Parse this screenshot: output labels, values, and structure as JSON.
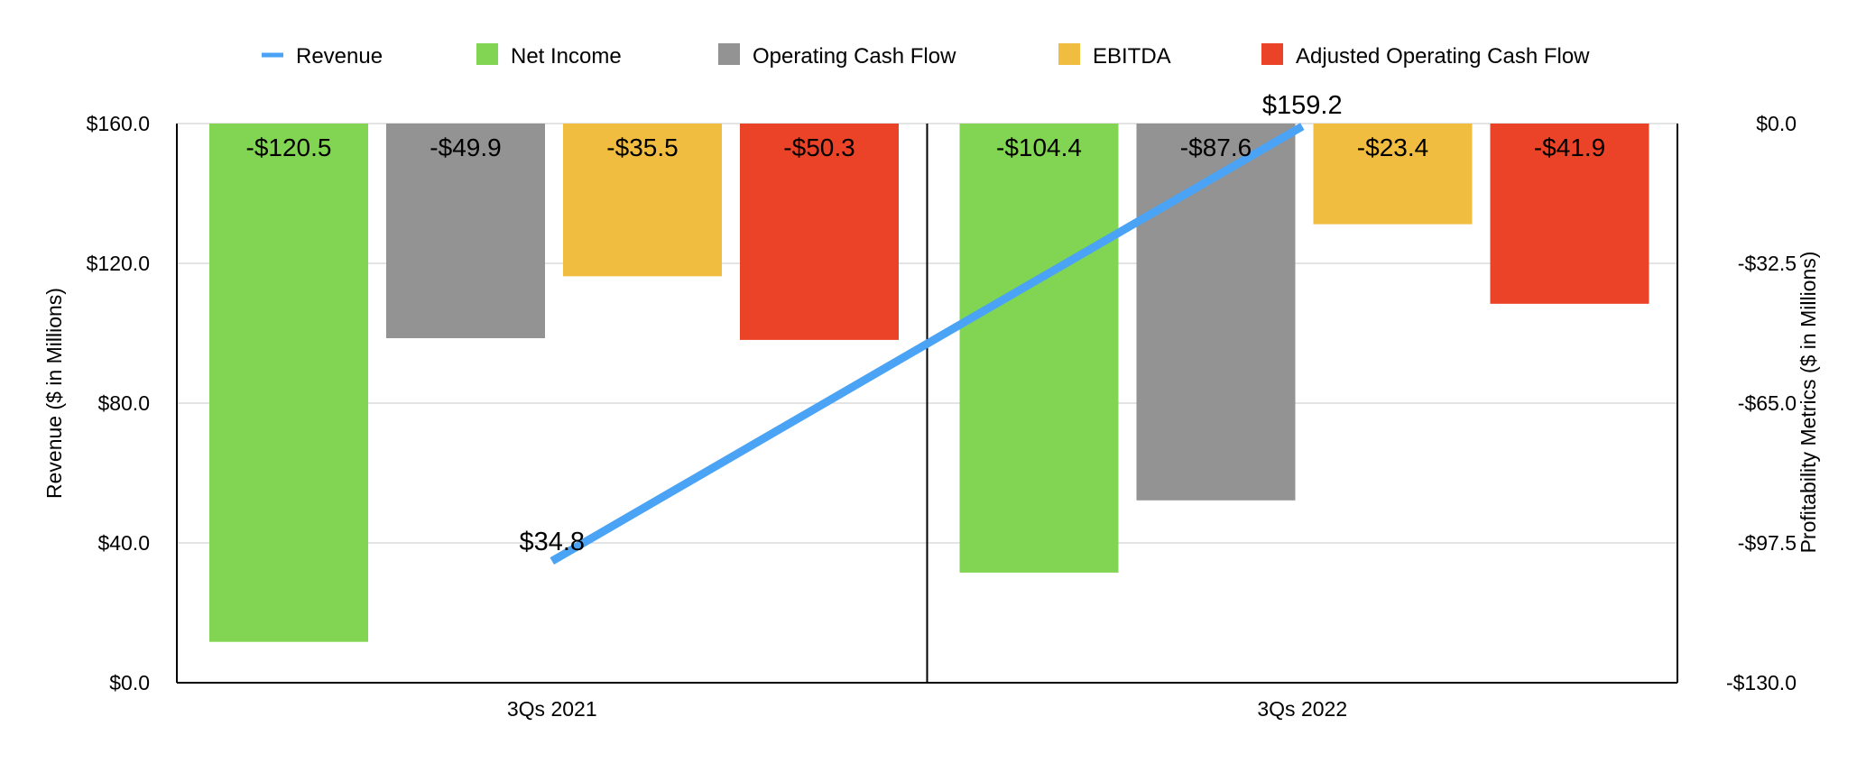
{
  "chart_data": {
    "type": "bar",
    "categories": [
      "3Qs 2021",
      "3Qs 2022"
    ],
    "series": [
      {
        "name": "Net Income",
        "axis": "right",
        "values": [
          -120.5,
          -104.4
        ],
        "labels": [
          "-$120.5",
          "-$104.4"
        ],
        "color": "#82d552"
      },
      {
        "name": "Operating Cash Flow",
        "axis": "right",
        "values": [
          -49.9,
          -87.6
        ],
        "labels": [
          "-$49.9",
          "-$87.6"
        ],
        "color": "#939393"
      },
      {
        "name": "EBITDA",
        "axis": "right",
        "values": [
          -35.5,
          -23.4
        ],
        "labels": [
          "-$35.5",
          "-$23.4"
        ],
        "color": "#f0bd41"
      },
      {
        "name": "Adjusted Operating Cash Flow",
        "axis": "right",
        "values": [
          -50.3,
          -41.9
        ],
        "labels": [
          "-$50.3",
          "-$41.9"
        ],
        "color": "#eb4328"
      }
    ],
    "line_series": {
      "name": "Revenue",
      "type": "line",
      "axis": "left",
      "values": [
        34.8,
        159.2
      ],
      "labels": [
        "$34.8",
        "$159.2"
      ],
      "color": "#4aa3f4"
    },
    "legend_order": [
      "Revenue",
      "Net Income",
      "Operating Cash Flow",
      "EBITDA",
      "Adjusted Operating Cash Flow"
    ],
    "legend_position": "top",
    "y_left": {
      "label": "Revenue ($ in Millions)",
      "ylim": [
        0,
        160
      ],
      "ticks": [
        0,
        40,
        80,
        120,
        160
      ],
      "tick_labels": [
        "$0.0",
        "$40.0",
        "$80.0",
        "$120.0",
        "$160.0"
      ]
    },
    "y_right": {
      "label": "Profitability Metrics ($ in Millions)",
      "ylim": [
        -130,
        0
      ],
      "ticks": [
        0,
        -32.5,
        -65,
        -97.5,
        -130
      ],
      "tick_labels": [
        "$0.0",
        "-$32.5",
        "-$65.0",
        "-$97.5",
        "-$130.0"
      ]
    },
    "grid": true
  }
}
